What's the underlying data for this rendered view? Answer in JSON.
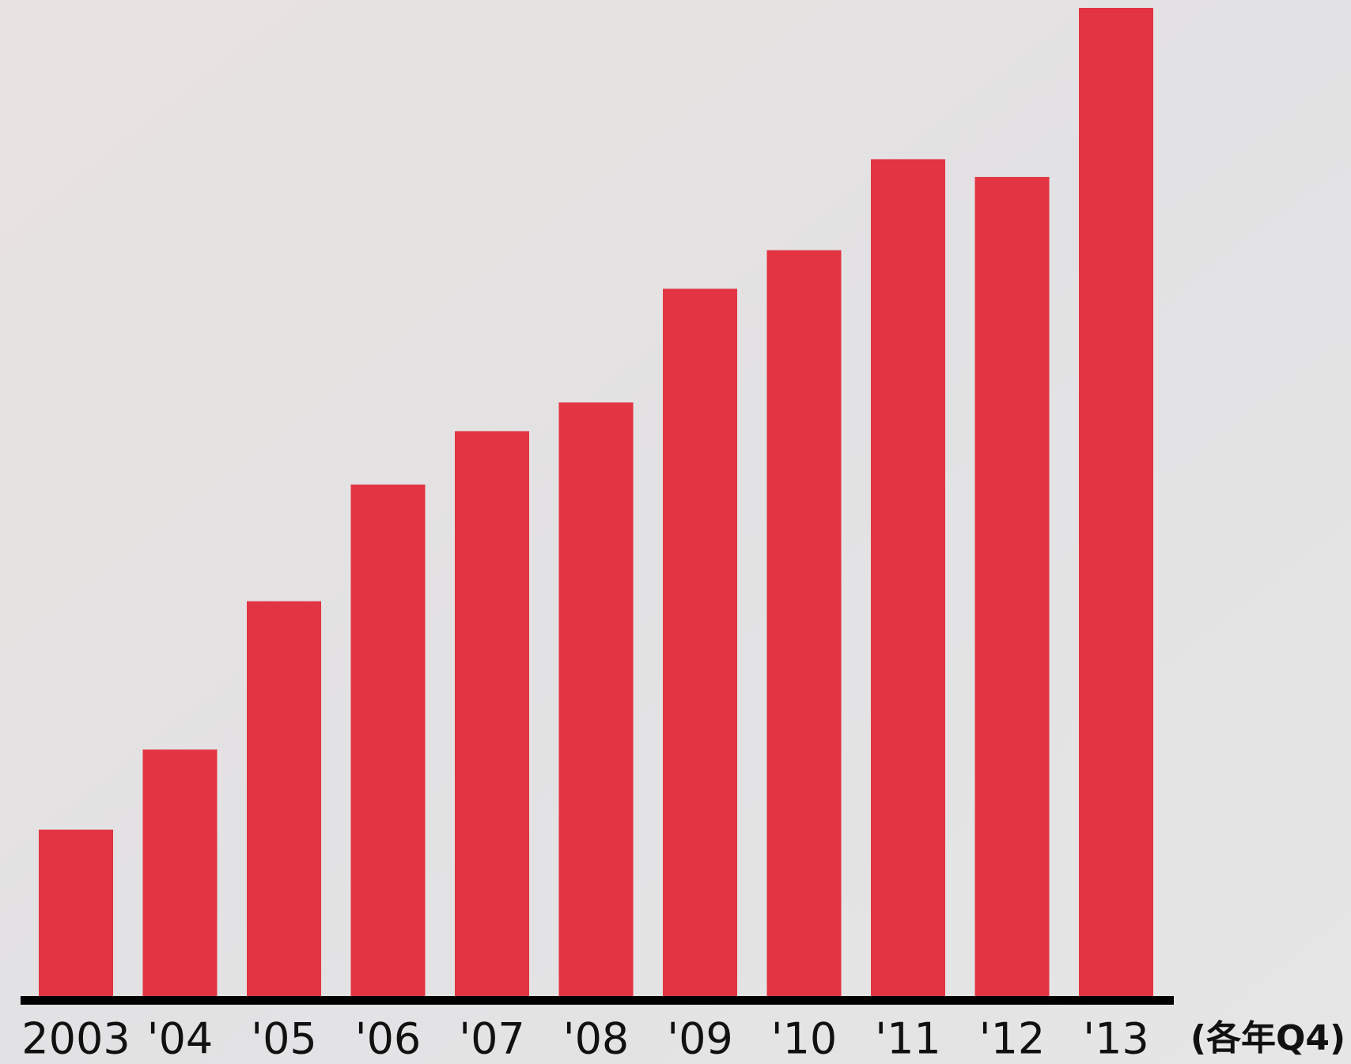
{
  "chart_data": {
    "type": "bar",
    "categories": [
      "2003",
      "'04",
      "'05",
      "'06",
      "'07",
      "'08",
      "'09",
      "'10",
      "'11",
      "'12",
      "'13"
    ],
    "values": [
      16.9,
      25,
      40,
      51.8,
      57.2,
      60.1,
      71.6,
      75.5,
      84.7,
      82.9,
      100
    ],
    "color": "#e23442",
    "ylim": [
      0,
      100
    ],
    "annotation": "(各年Q4)"
  }
}
